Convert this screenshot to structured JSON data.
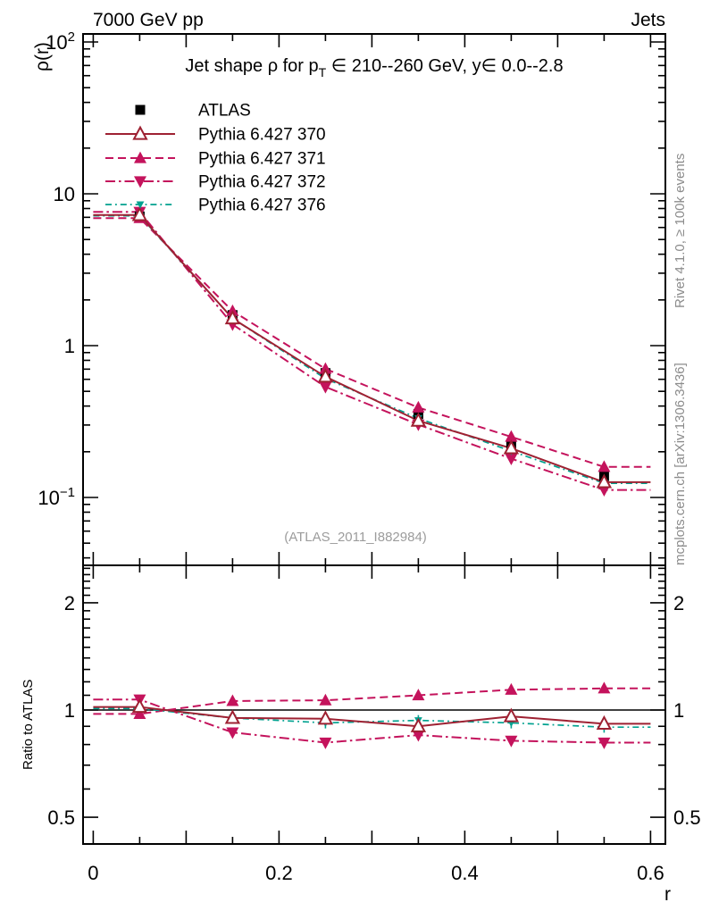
{
  "header": {
    "left": "7000 GeV pp",
    "right": "Jets"
  },
  "side_notes": {
    "top": "Rivet 4.1.0, ≥ 100k events",
    "bottom": "mcplots.cern.ch [arXiv:1306.3436]"
  },
  "watermark": "(ATLAS_2011_I882984)",
  "colors": {
    "atlas": "#000000",
    "pythia370": "#9e2132",
    "pythia371": "#c4135c",
    "pythia372": "#c4135c",
    "pythia376": "#00a18f",
    "axis": "#000000",
    "gray_text": "#8c8c8c"
  },
  "chart_data": {
    "type": "line",
    "title_parts": {
      "t1": "Jet shape ρ for p",
      "sub": "T",
      "t2": " ∈ 210--260 GeV, y∈ 0.0--2.8"
    },
    "xlabel": "r",
    "ylabel_main": "ρ(r)",
    "ylabel_ratio": "Ratio to ATLAS",
    "x_axis": {
      "min": -0.011,
      "max": 0.616,
      "labeled_ticks": [
        0,
        0.2,
        0.4,
        0.6
      ],
      "medium_ticks": [
        0.1,
        0.3,
        0.5
      ],
      "minor_step": 0.05
    },
    "y_main_axis": {
      "scale": "log",
      "min": 0.0357,
      "max": 113,
      "labeled_ticks": [
        100,
        10,
        1,
        0.1
      ]
    },
    "y_ratio_axis": {
      "scale": "log",
      "min": 0.42,
      "max": 2.55,
      "labeled_ticks": [
        2,
        1,
        0.5
      ]
    },
    "grid": false,
    "legend_position": "top-left",
    "x": [
      0.05,
      0.15,
      0.25,
      0.35,
      0.45,
      0.55
    ],
    "series": [
      {
        "name": "ATLAS",
        "color": "#000000",
        "marker": "square",
        "line": "none",
        "values": [
          7.1,
          1.59,
          0.66,
          0.355,
          0.22,
          0.138
        ],
        "err_frac": [
          0.045,
          0.035,
          0.03,
          0.03,
          0.035,
          0.04
        ]
      },
      {
        "name": "Pythia 6.427 370",
        "color": "#9e2132",
        "marker": "triangle-open",
        "line": "solid",
        "values": [
          7.24,
          1.51,
          0.624,
          0.32,
          0.211,
          0.126
        ],
        "ratio": [
          1.02,
          0.95,
          0.945,
          0.9,
          0.96,
          0.915
        ],
        "ratio_err": 0.015
      },
      {
        "name": "Pythia 6.427 371",
        "color": "#c4135c",
        "marker": "triangle-up",
        "line": "dashed",
        "values": [
          6.92,
          1.69,
          0.703,
          0.391,
          0.251,
          0.159
        ],
        "ratio": [
          0.975,
          1.06,
          1.065,
          1.1,
          1.14,
          1.15
        ],
        "ratio_err": 0.015
      },
      {
        "name": "Pythia 6.427 372",
        "color": "#c4135c",
        "marker": "triangle-down",
        "line": "dashdot",
        "values": [
          7.6,
          1.38,
          0.535,
          0.302,
          0.18,
          0.112
        ],
        "ratio": [
          1.07,
          0.865,
          0.81,
          0.85,
          0.82,
          0.81
        ],
        "ratio_err": 0.015
      },
      {
        "name": "Pythia 6.427 376",
        "color": "#00a18f",
        "marker": "triangle-down-small",
        "line": "dashdot-fine",
        "values": [
          7.17,
          1.51,
          0.607,
          0.332,
          0.202,
          0.124
        ],
        "ratio": [
          1.01,
          0.95,
          0.92,
          0.935,
          0.92,
          0.895
        ],
        "ratio_err": 0.035
      }
    ]
  }
}
